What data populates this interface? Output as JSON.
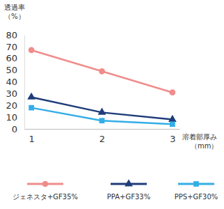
{
  "chart_data": {
    "type": "line",
    "y_label": "透過率\n（%）",
    "x_label": "溶着部厚み\n（mm）",
    "x": [
      1,
      2,
      3
    ],
    "series": [
      {
        "name": "ジェネスタ+GF35%",
        "color": "#f08c8c",
        "marker": "circle",
        "line_style": "solid",
        "values": [
          67,
          49,
          31
        ]
      },
      {
        "name": "PPA+GF33%",
        "color": "#1f3d7a",
        "marker": "triangle",
        "line_style": "solid",
        "values": [
          27,
          14,
          8
        ]
      },
      {
        "name": "PPS+GF30%",
        "color": "#33aee6",
        "marker": "square",
        "line_style": "solid",
        "values": [
          18,
          7,
          4
        ]
      }
    ],
    "xlim": [
      0.9,
      3.1
    ],
    "xticks": [
      1,
      2,
      3
    ],
    "ylim": [
      0,
      80
    ],
    "yticks": [
      0,
      10,
      20,
      30,
      40,
      50,
      60,
      70,
      80
    ],
    "grid": false,
    "legend": "bottom"
  }
}
